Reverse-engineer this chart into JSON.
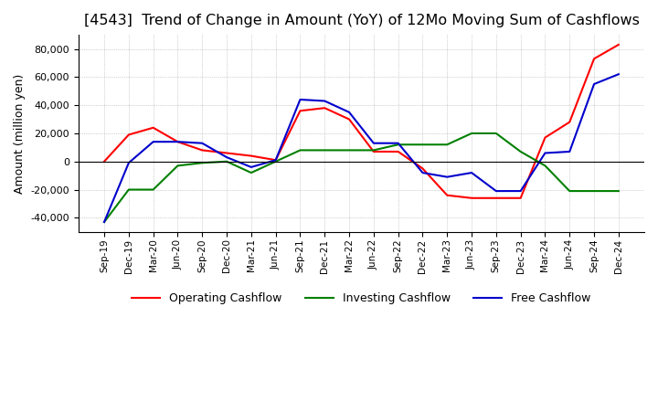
{
  "title": "[4543]  Trend of Change in Amount (YoY) of 12Mo Moving Sum of Cashflows",
  "ylabel": "Amount (million yen)",
  "x_labels": [
    "Sep-19",
    "Dec-19",
    "Mar-20",
    "Jun-20",
    "Sep-20",
    "Dec-20",
    "Mar-21",
    "Jun-21",
    "Sep-21",
    "Dec-21",
    "Mar-22",
    "Jun-22",
    "Sep-22",
    "Dec-22",
    "Mar-23",
    "Jun-23",
    "Sep-23",
    "Dec-23",
    "Mar-24",
    "Jun-24",
    "Sep-24",
    "Dec-24"
  ],
  "operating": [
    0,
    19000,
    24000,
    14000,
    8000,
    6000,
    4000,
    1000,
    36000,
    38000,
    30000,
    7000,
    7000,
    -5000,
    -24000,
    -26000,
    -26000,
    -26000,
    17000,
    28000,
    73000,
    83000
  ],
  "investing": [
    -43000,
    -20000,
    -20000,
    -3000,
    -1000,
    0,
    -8000,
    0,
    8000,
    8000,
    8000,
    8000,
    12000,
    12000,
    12000,
    20000,
    20000,
    7000,
    -3000,
    -21000,
    -21000,
    -21000
  ],
  "free": [
    -43000,
    -1000,
    14000,
    14000,
    13000,
    3000,
    -4000,
    1000,
    44000,
    43000,
    35000,
    13000,
    13000,
    -8000,
    -11000,
    -8000,
    -21000,
    -21000,
    6000,
    7000,
    55000,
    62000
  ],
  "operating_color": "#ff0000",
  "investing_color": "#008000",
  "free_color": "#0000cc",
  "ylim": [
    -50000,
    90000
  ],
  "yticks": [
    -40000,
    -20000,
    0,
    20000,
    40000,
    60000,
    80000
  ],
  "grid_color": "#aaaaaa",
  "background_color": "#ffffff",
  "title_fontsize": 11.5,
  "title_fontweight": "normal",
  "legend_labels": [
    "Operating Cashflow",
    "Investing Cashflow",
    "Free Cashflow"
  ]
}
